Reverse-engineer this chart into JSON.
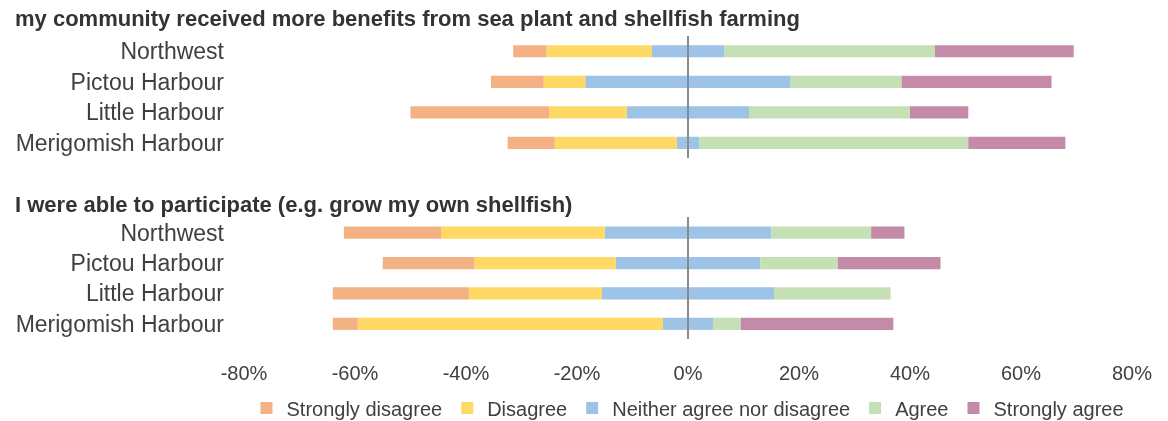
{
  "chart_data": [
    {
      "type": "bar",
      "orientation": "horizontal",
      "stacked": true,
      "title": "my community received more benefits from sea plant and shellfish farming",
      "categories": [
        "Northwest",
        "Pictou Harbour",
        "Little Harbour",
        "Merigomish Harbour"
      ],
      "series": [
        {
          "color": "#9dc3e6",
          "values": [
            -6.5,
            -18.5,
            -11,
            -2
          ]
        },
        {
          "name": "Disagree",
          "color": "#ffd966",
          "values": [
            -19,
            -7.5,
            -14,
            -22
          ]
        },
        {
          "name": "Strongly disagree",
          "color": "#f4b183",
          "values": [
            -6,
            -9.5,
            -25,
            -8.5
          ]
        },
        {
          "name": "Neither agree nor disagree",
          "color": "#9dc3e6",
          "values": [
            6.5,
            18.5,
            11,
            2
          ]
        },
        {
          "name": "Agree",
          "color": "#c5e0b4",
          "values": [
            38,
            20,
            29,
            48.5
          ]
        },
        {
          "name": "Strongly agree",
          "color": "#c48aa8",
          "values": [
            25,
            27,
            10.5,
            17.5
          ]
        }
      ],
      "xlim": [
        -80,
        80
      ],
      "tick_labels": "y",
      "legend": "bottom"
    },
    {
      "type": "bar",
      "orientation": "horizontal",
      "stacked": true,
      "title": "I were able to participate (e.g. grow my own shellfish)",
      "categories": [
        "Northwest",
        "Pictou Harbour",
        "Little Harbour",
        "Merigomish Harbour"
      ],
      "series": [
        {
          "color": "#9dc3e6",
          "values": [
            -15,
            -13,
            -15.5,
            -4.5
          ]
        },
        {
          "color": "#ffd966",
          "values": [
            -29.5,
            -25.5,
            -24,
            -55
          ]
        },
        {
          "color": "#f4b183",
          "values": [
            -17.5,
            -16.5,
            -24.5,
            -4.5
          ]
        },
        {
          "color": "#9dc3e6",
          "values": [
            15,
            13,
            15.5,
            4.5
          ]
        },
        {
          "color": "#c5e0b4",
          "values": [
            18,
            14,
            21,
            5
          ]
        },
        {
          "color": "#c48aa8",
          "values": [
            6,
            18.5,
            0,
            27.5
          ]
        }
      ],
      "xlim": [
        -80,
        80
      ],
      "xticks": [
        {
          "value": -80,
          "label": "-80%"
        },
        {
          "value": -60,
          "label": "-60%"
        },
        {
          "value": -40,
          "label": "-40%"
        },
        {
          "value": -20,
          "label": "-20%"
        },
        {
          "value": 0,
          "label": "0%"
        },
        {
          "value": 20,
          "label": "20%"
        },
        {
          "value": 40,
          "label": "40%"
        },
        {
          "value": 60,
          "label": "60%"
        },
        {
          "value": 80,
          "label": "80%"
        }
      ]
    }
  ]
}
